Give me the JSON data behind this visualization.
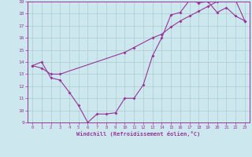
{
  "xlabel": "Windchill (Refroidissement éolien,°C)",
  "bg_color": "#cce8ee",
  "line_color": "#993399",
  "grid_color": "#aacccc",
  "xlim": [
    -0.5,
    23.5
  ],
  "ylim": [
    9,
    19
  ],
  "xticks": [
    0,
    1,
    2,
    3,
    4,
    5,
    6,
    7,
    8,
    9,
    10,
    11,
    12,
    13,
    14,
    15,
    16,
    17,
    18,
    19,
    20,
    21,
    22,
    23
  ],
  "yticks": [
    9,
    10,
    11,
    12,
    13,
    14,
    15,
    16,
    17,
    18,
    19
  ],
  "line1_x": [
    0,
    1,
    2,
    3,
    4,
    5,
    6,
    7,
    8,
    9,
    10,
    11,
    12,
    13,
    14,
    15,
    16,
    17,
    18,
    19,
    20,
    21,
    22,
    23
  ],
  "line1_y": [
    13.7,
    14.0,
    12.7,
    12.5,
    11.5,
    10.4,
    9.0,
    9.7,
    9.7,
    9.8,
    11.0,
    11.0,
    12.1,
    14.5,
    16.0,
    17.9,
    18.1,
    19.1,
    18.9,
    19.0,
    18.1,
    18.5,
    17.8,
    17.4
  ],
  "line2_x": [
    0,
    1,
    2,
    3,
    10,
    11,
    13,
    14,
    15,
    16,
    17,
    18,
    19,
    20,
    21,
    22,
    23
  ],
  "line2_y": [
    13.7,
    13.5,
    13.0,
    13.0,
    14.8,
    15.2,
    16.0,
    16.3,
    16.9,
    17.4,
    17.8,
    18.2,
    18.6,
    19.0,
    19.2,
    19.1,
    17.4
  ]
}
